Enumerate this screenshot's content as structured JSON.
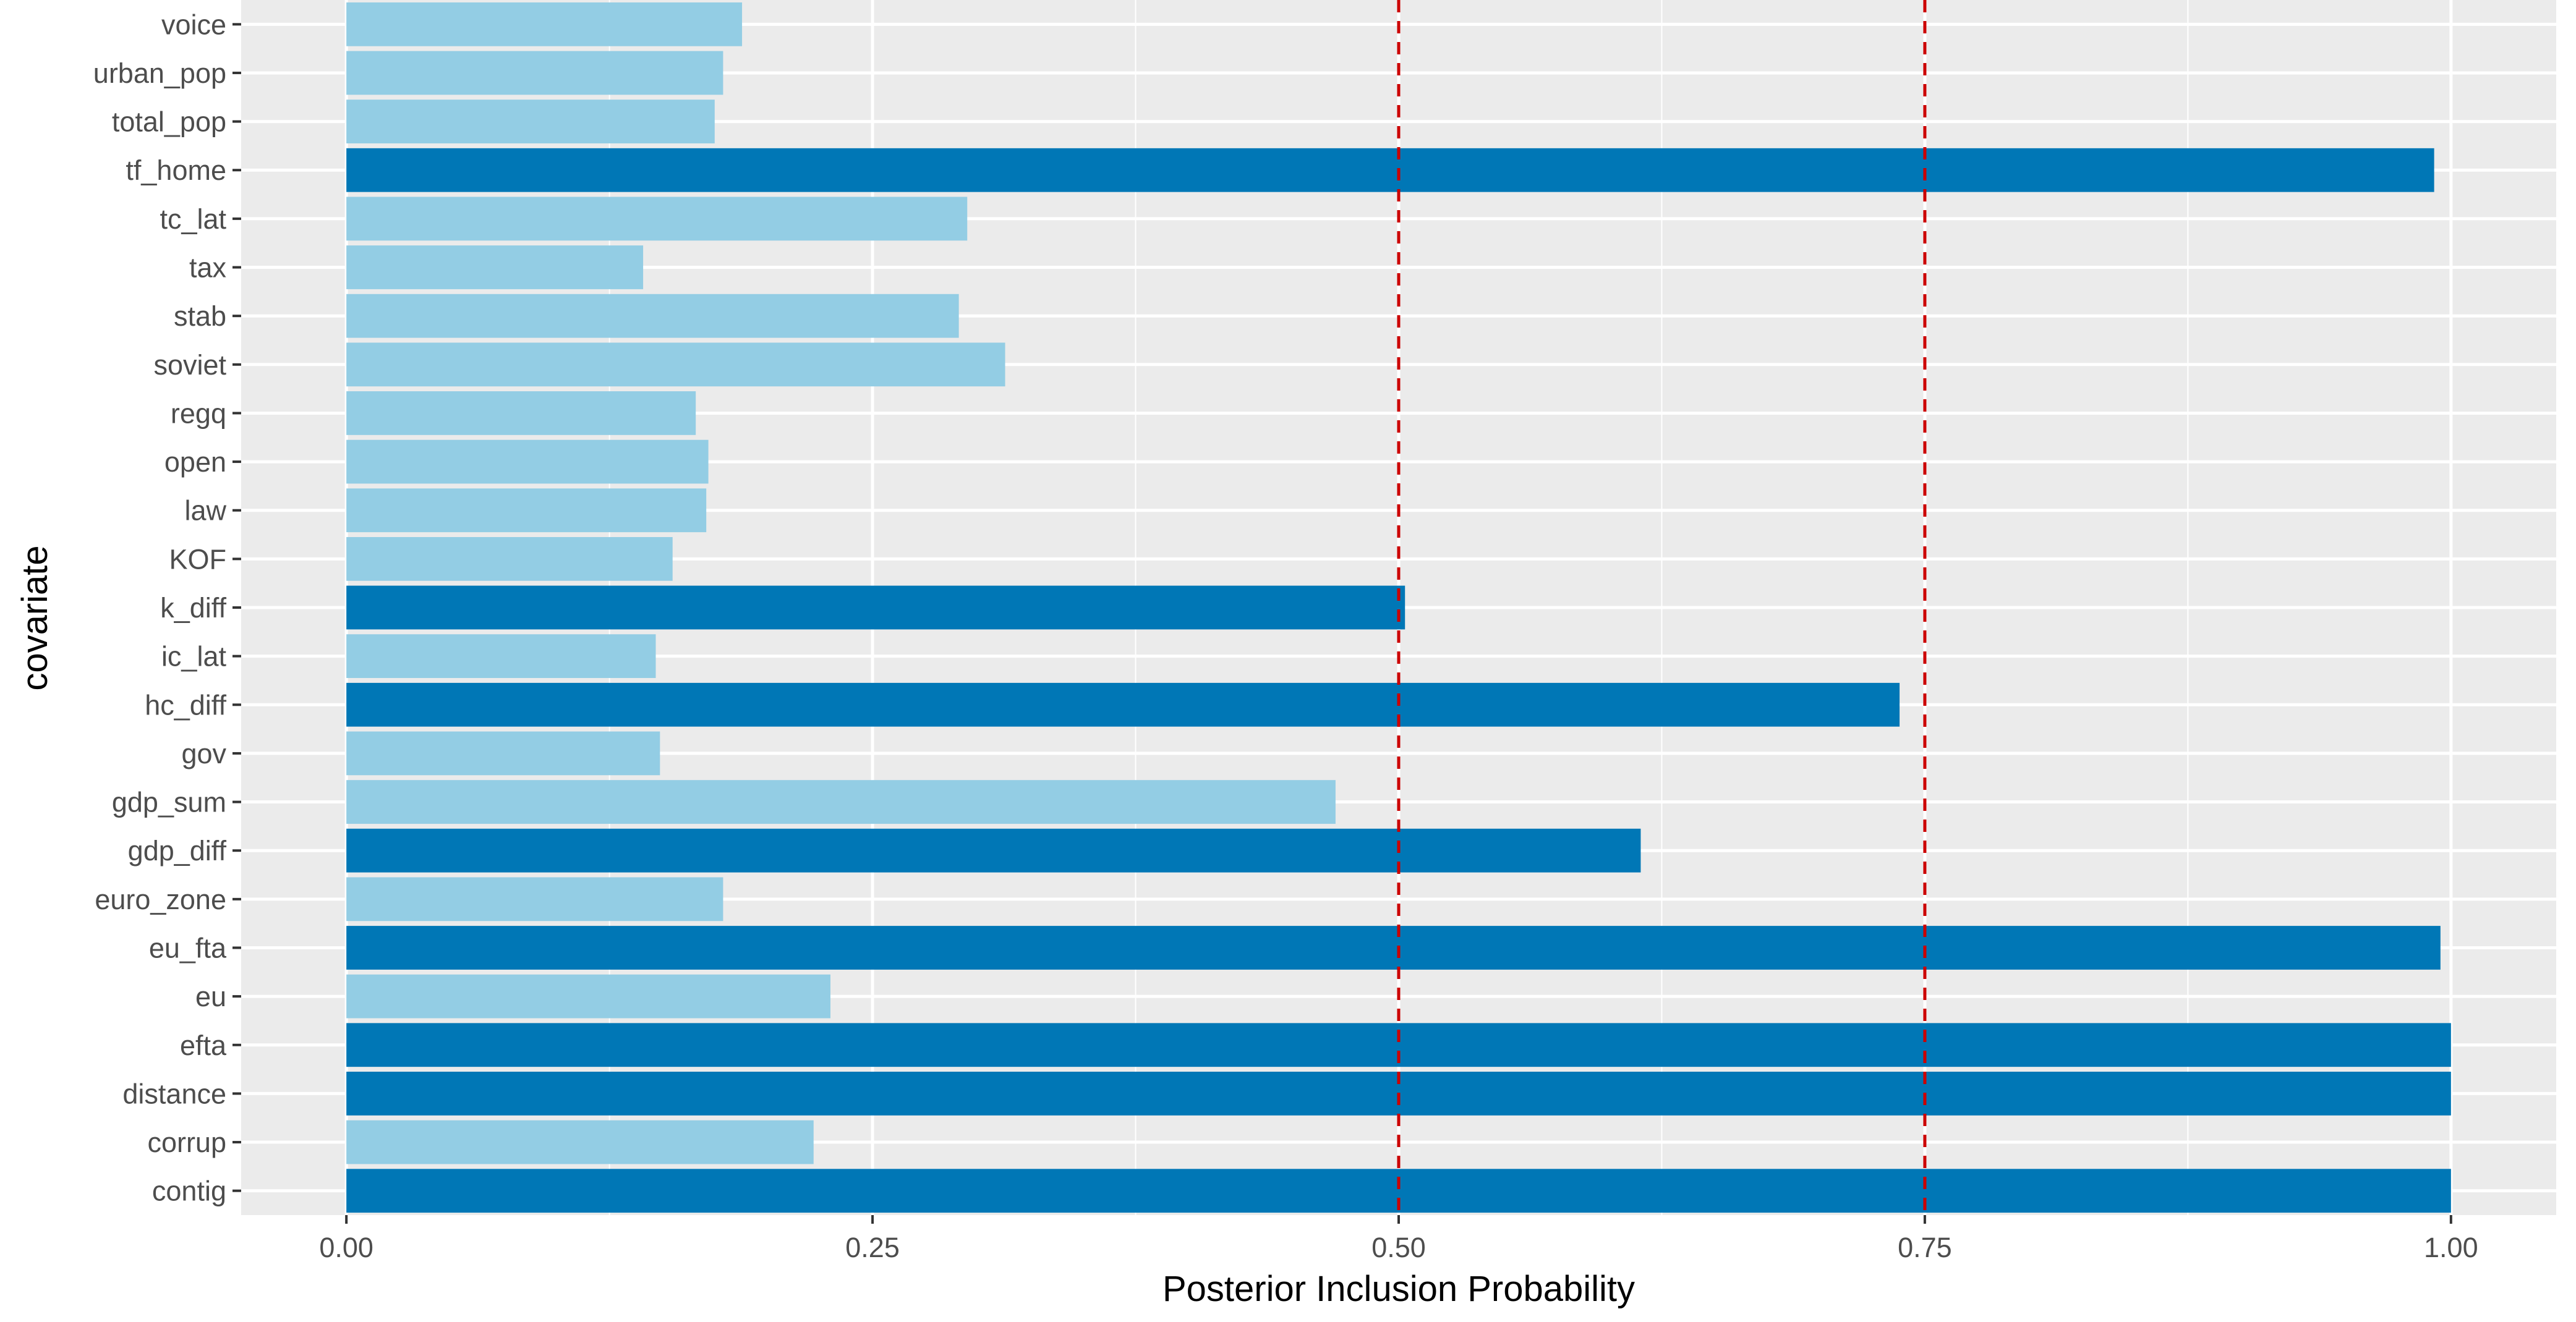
{
  "chart_data": {
    "type": "bar",
    "orientation": "horizontal",
    "title": "",
    "xlabel": "Posterior Inclusion Probability",
    "ylabel": "covariate",
    "xlim": [
      -0.05,
      1.05
    ],
    "x_ticks": [
      {
        "value": 0.0,
        "label": "0.00"
      },
      {
        "value": 0.25,
        "label": "0.25"
      },
      {
        "value": 0.5,
        "label": "0.50"
      },
      {
        "value": 0.75,
        "label": "0.75"
      },
      {
        "value": 1.0,
        "label": "1.00"
      }
    ],
    "reference_lines": [
      {
        "value": 0.5,
        "style": "dashed",
        "color": "#cc0000"
      },
      {
        "value": 0.75,
        "style": "dashed",
        "color": "#cc0000"
      }
    ],
    "grid": true,
    "highlight_threshold": 0.5,
    "colors": {
      "panel_background": "#ebebeb",
      "grid_major": "#ffffff",
      "bar_low": "#93cde4",
      "bar_high": "#0077b6",
      "axis_text": "#4d4d4d",
      "axis_title": "#000000"
    },
    "categories": [
      "voice",
      "urban_pop",
      "total_pop",
      "tf_home",
      "tc_lat",
      "tax",
      "stab",
      "soviet",
      "regq",
      "open",
      "law",
      "KOF",
      "k_diff",
      "ic_lat",
      "hc_diff",
      "gov",
      "gdp_sum",
      "gdp_diff",
      "euro_zone",
      "eu_fta",
      "eu",
      "efta",
      "distance",
      "corrup",
      "contig"
    ],
    "values": [
      0.188,
      0.179,
      0.175,
      0.992,
      0.295,
      0.141,
      0.291,
      0.313,
      0.166,
      0.172,
      0.171,
      0.155,
      0.503,
      0.147,
      0.738,
      0.149,
      0.47,
      0.615,
      0.179,
      0.995,
      0.23,
      1.0,
      1.0,
      0.222,
      1.0
    ]
  }
}
